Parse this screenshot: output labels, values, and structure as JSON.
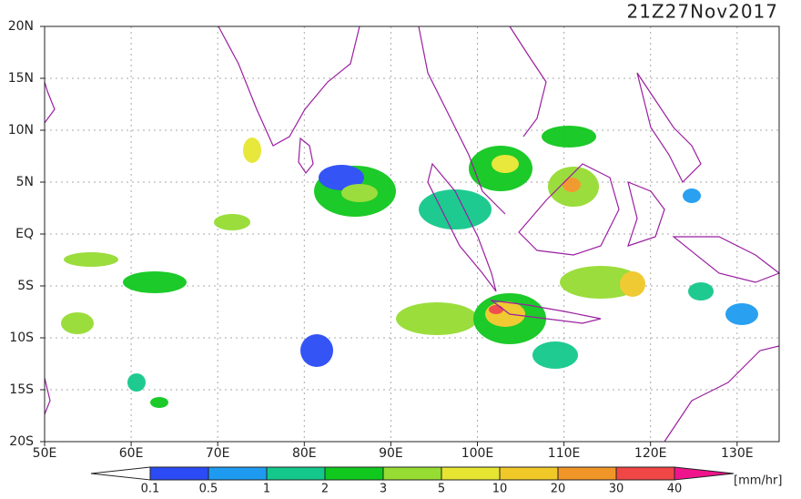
{
  "map": {
    "title": "21Z27Nov2017",
    "lat_labels": [
      "20N",
      "15N",
      "10N",
      "5N",
      "EQ",
      "5S",
      "10S",
      "15S",
      "20S"
    ],
    "lon_labels": [
      "50E",
      "60E",
      "70E",
      "80E",
      "90E",
      "100E",
      "110E",
      "120E",
      "130E"
    ]
  },
  "colorbar": {
    "labels": [
      "0.1",
      "0.5",
      "1",
      "2",
      "3",
      "5",
      "10",
      "20",
      "30",
      "40"
    ],
    "colors": [
      "#2a4bf5",
      "#1e9bf0",
      "#14c88c",
      "#10c81e",
      "#96dc32",
      "#e6e632",
      "#f0c828",
      "#f09628",
      "#f04646"
    ],
    "under_color": "#ffffff",
    "over_color": "#f0148c",
    "unit": "[mm/hr]"
  }
}
